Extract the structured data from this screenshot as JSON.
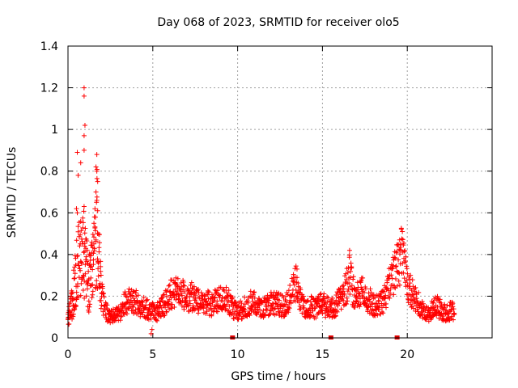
{
  "chart_data": {
    "type": "scatter",
    "title": "Day 068 of 2023, SRMTID for receiver olo5",
    "xlabel": "GPS time / hours",
    "ylabel": "SRMTID / TECUs",
    "xlim": [
      0,
      25
    ],
    "ylim": [
      0,
      1.4
    ],
    "grid": true,
    "marker": "plus",
    "color": "#ff0000",
    "x_ticks": [
      {
        "value": 0,
        "label": "0"
      },
      {
        "value": 5,
        "label": "5"
      },
      {
        "value": 10,
        "label": "10"
      },
      {
        "value": 15,
        "label": "15"
      },
      {
        "value": 20,
        "label": "20"
      }
    ],
    "y_ticks": [
      {
        "value": 0,
        "label": "0"
      },
      {
        "value": 0.2,
        "label": "0.2"
      },
      {
        "value": 0.4,
        "label": "0.4"
      },
      {
        "value": 0.6,
        "label": "0.6"
      },
      {
        "value": 0.8,
        "label": "0.8"
      },
      {
        "value": 1.0,
        "label": "1"
      },
      {
        "value": 1.2,
        "label": "1.2"
      },
      {
        "value": 1.4,
        "label": "1.4"
      }
    ],
    "axis_markers_x": [
      9.7,
      15.5,
      19.4
    ],
    "envelope": [
      [
        0.0,
        0.09
      ],
      [
        0.2,
        0.15
      ],
      [
        0.4,
        0.25
      ],
      [
        0.6,
        0.35
      ],
      [
        0.8,
        0.38
      ],
      [
        0.9,
        0.42
      ],
      [
        1.0,
        0.35
      ],
      [
        1.2,
        0.26
      ],
      [
        1.4,
        0.3
      ],
      [
        1.6,
        0.45
      ],
      [
        1.7,
        0.55
      ],
      [
        1.8,
        0.4
      ],
      [
        2.0,
        0.2
      ],
      [
        2.2,
        0.13
      ],
      [
        2.5,
        0.1
      ],
      [
        2.8,
        0.11
      ],
      [
        3.1,
        0.13
      ],
      [
        3.4,
        0.17
      ],
      [
        3.7,
        0.18
      ],
      [
        4.0,
        0.17
      ],
      [
        4.3,
        0.15
      ],
      [
        4.6,
        0.14
      ],
      [
        4.9,
        0.13
      ],
      [
        5.2,
        0.12
      ],
      [
        5.5,
        0.14
      ],
      [
        5.8,
        0.18
      ],
      [
        6.1,
        0.21
      ],
      [
        6.4,
        0.22
      ],
      [
        6.7,
        0.21
      ],
      [
        7.0,
        0.19
      ],
      [
        7.3,
        0.2
      ],
      [
        7.6,
        0.18
      ],
      [
        7.9,
        0.17
      ],
      [
        8.2,
        0.17
      ],
      [
        8.5,
        0.16
      ],
      [
        8.8,
        0.18
      ],
      [
        9.1,
        0.18
      ],
      [
        9.4,
        0.18
      ],
      [
        9.7,
        0.15
      ],
      [
        10.0,
        0.12
      ],
      [
        10.3,
        0.14
      ],
      [
        10.6,
        0.16
      ],
      [
        10.9,
        0.17
      ],
      [
        11.2,
        0.15
      ],
      [
        11.5,
        0.14
      ],
      [
        11.8,
        0.16
      ],
      [
        12.1,
        0.17
      ],
      [
        12.4,
        0.16
      ],
      [
        12.7,
        0.15
      ],
      [
        13.0,
        0.17
      ],
      [
        13.3,
        0.24
      ],
      [
        13.5,
        0.27
      ],
      [
        13.7,
        0.18
      ],
      [
        14.0,
        0.14
      ],
      [
        14.3,
        0.15
      ],
      [
        14.6,
        0.14
      ],
      [
        14.9,
        0.17
      ],
      [
        15.2,
        0.15
      ],
      [
        15.5,
        0.14
      ],
      [
        15.8,
        0.16
      ],
      [
        16.1,
        0.2
      ],
      [
        16.4,
        0.24
      ],
      [
        16.6,
        0.3
      ],
      [
        16.8,
        0.22
      ],
      [
        17.1,
        0.2
      ],
      [
        17.4,
        0.23
      ],
      [
        17.7,
        0.19
      ],
      [
        18.0,
        0.16
      ],
      [
        18.3,
        0.15
      ],
      [
        18.6,
        0.18
      ],
      [
        18.9,
        0.25
      ],
      [
        19.2,
        0.3
      ],
      [
        19.5,
        0.36
      ],
      [
        19.7,
        0.4
      ],
      [
        19.9,
        0.3
      ],
      [
        20.2,
        0.23
      ],
      [
        20.5,
        0.18
      ],
      [
        20.8,
        0.15
      ],
      [
        21.0,
        0.11
      ],
      [
        21.3,
        0.12
      ],
      [
        21.6,
        0.16
      ],
      [
        21.9,
        0.14
      ],
      [
        22.2,
        0.12
      ],
      [
        22.5,
        0.13
      ],
      [
        22.8,
        0.13
      ]
    ],
    "noted_points": [
      [
        0.95,
        1.2
      ],
      [
        0.95,
        1.16
      ],
      [
        1.0,
        1.02
      ],
      [
        0.95,
        0.97
      ],
      [
        0.95,
        0.9
      ],
      [
        0.55,
        0.89
      ],
      [
        0.75,
        0.84
      ],
      [
        0.6,
        0.78
      ],
      [
        1.7,
        0.88
      ],
      [
        1.65,
        0.82
      ],
      [
        1.7,
        0.8
      ],
      [
        1.75,
        0.75
      ],
      [
        1.65,
        0.7
      ],
      [
        1.7,
        0.66
      ],
      [
        1.75,
        0.61
      ],
      [
        0.95,
        0.63
      ],
      [
        0.5,
        0.62
      ],
      [
        0.55,
        0.6
      ],
      [
        19.55,
        0.47
      ],
      [
        19.6,
        0.45
      ],
      [
        16.6,
        0.42
      ],
      [
        13.5,
        0.33
      ],
      [
        4.9,
        0.02
      ],
      [
        4.95,
        0.04
      ]
    ]
  }
}
